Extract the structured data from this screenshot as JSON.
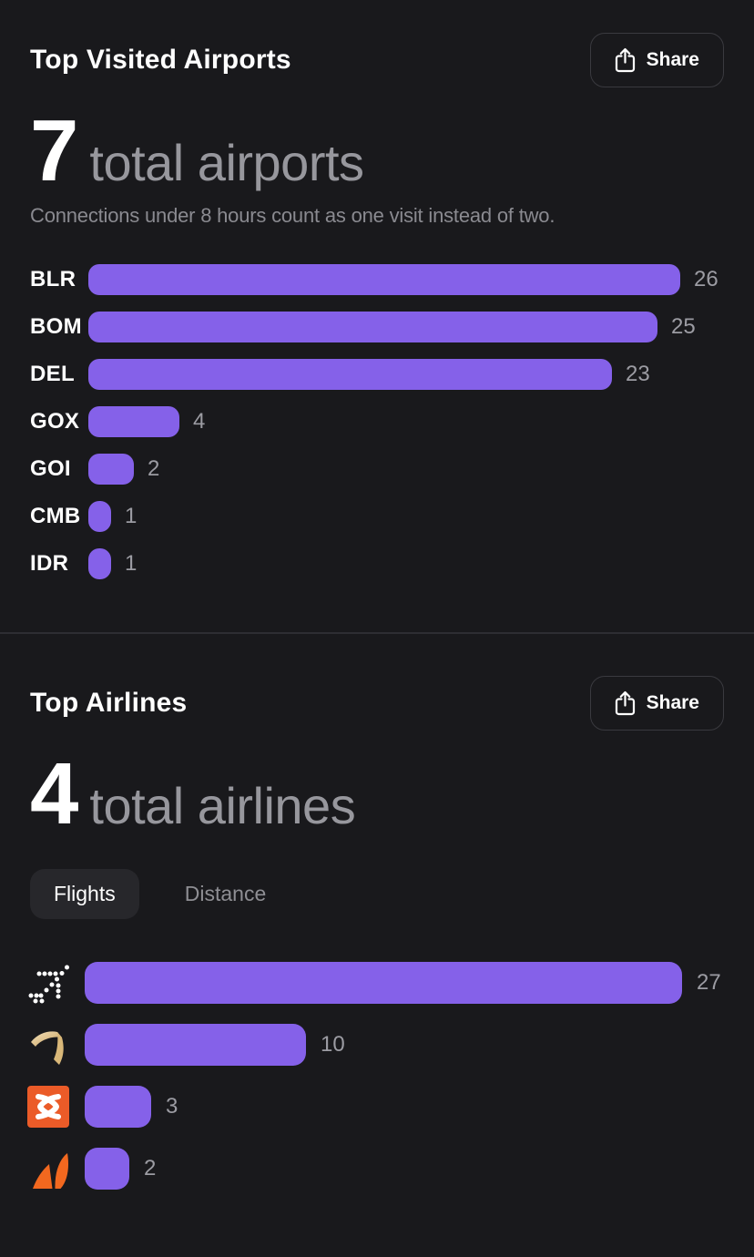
{
  "colors": {
    "background": "#19191C",
    "bar_accent": "#8561E9",
    "muted_text": "#8A8A90",
    "value_text": "#9C9CA3",
    "aix_orange": "#EB5B28",
    "akasa_orange": "#F2681F",
    "vistara_gold": "#D9B879"
  },
  "airports": {
    "title": "Top Visited Airports",
    "share_label": "Share",
    "share_icon": "share-icon",
    "total_value": "7",
    "total_label": "total airports",
    "subtitle": "Connections under 8 hours count as one visit instead of two.",
    "chart": {
      "categories": [
        "BLR",
        "BOM",
        "DEL",
        "GOX",
        "GOI",
        "CMB",
        "IDR"
      ],
      "values": [
        26,
        25,
        23,
        4,
        2,
        1,
        1
      ]
    }
  },
  "airlines": {
    "title": "Top Airlines",
    "share_label": "Share",
    "share_icon": "share-icon",
    "total_value": "4",
    "total_label": "total airlines",
    "tabs": [
      {
        "label": "Flights",
        "selected": true
      },
      {
        "label": "Distance",
        "selected": false
      }
    ],
    "chart": {
      "categories": [
        "indigo-logo",
        "vistara-logo",
        "air-india-express-logo",
        "akasa-air-logo"
      ],
      "values": [
        27,
        10,
        3,
        2
      ]
    }
  },
  "chart_data": [
    {
      "type": "bar",
      "orientation": "horizontal",
      "title": "Top Visited Airports",
      "subtitle": "Connections under 8 hours count as one visit instead of two.",
      "total": "7 total airports",
      "categories": [
        "BLR",
        "BOM",
        "DEL",
        "GOX",
        "GOI",
        "CMB",
        "IDR"
      ],
      "values": [
        26,
        25,
        23,
        4,
        2,
        1,
        1
      ],
      "bar_color": "#8561E9",
      "value_labels_shown": true,
      "grid": false
    },
    {
      "type": "bar",
      "orientation": "horizontal",
      "title": "Top Airlines",
      "total": "4 total airlines",
      "active_tab": "Flights",
      "categories": [
        "IndiGo",
        "Vistara",
        "Air India Express",
        "Akasa Air"
      ],
      "values": [
        27,
        10,
        3,
        2
      ],
      "bar_color": "#8561E9",
      "value_labels_shown": true,
      "grid": false
    }
  ]
}
